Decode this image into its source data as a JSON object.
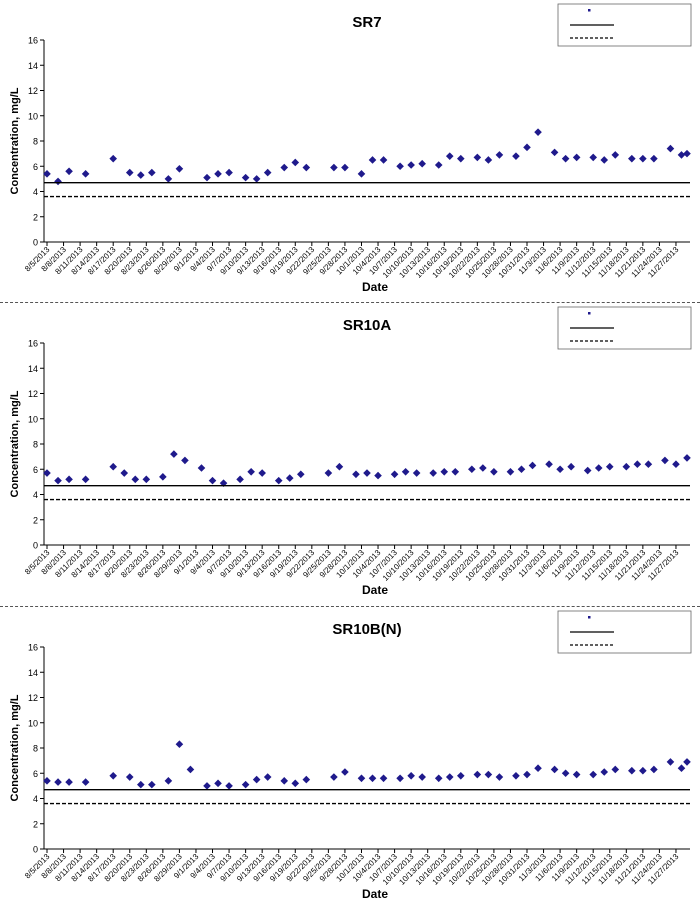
{
  "chart_data": [
    {
      "type": "scatter",
      "title": "SR7",
      "xlabel": "Date",
      "ylabel": "Concentration, mg/L",
      "ylim": [
        0,
        16
      ],
      "yticks": [
        0,
        2,
        4,
        6,
        8,
        10,
        12,
        14,
        16
      ],
      "xlim": [
        "8/5/2013",
        "11/29/2013"
      ],
      "xticks": [
        "8/5/2013",
        "8/8/2013",
        "8/11/2013",
        "8/14/2013",
        "8/17/2013",
        "8/20/2013",
        "8/23/2013",
        "8/26/2013",
        "8/29/2013",
        "9/1/2013",
        "9/4/2013",
        "9/7/2013",
        "9/10/2013",
        "9/13/2013",
        "9/16/2013",
        "9/19/2013",
        "9/22/2013",
        "9/25/2013",
        "9/28/2013",
        "10/1/2013",
        "10/4/2013",
        "10/7/2013",
        "10/10/2013",
        "10/13/2013",
        "10/16/2013",
        "10/19/2013",
        "10/22/2013",
        "10/25/2013",
        "10/28/2013",
        "10/31/2013",
        "11/3/2013",
        "11/6/2013",
        "11/9/2013",
        "11/12/2013",
        "11/15/2013",
        "11/18/2013",
        "11/21/2013",
        "11/24/2013",
        "11/27/2013"
      ],
      "legend_position": "top-right",
      "grid": false,
      "series": [
        {
          "kind": "points",
          "color": "#1f1a8c",
          "x": [
            "8/5/2013",
            "8/7/2013",
            "8/9/2013",
            "8/12/2013",
            "8/17/2013",
            "8/20/2013",
            "8/22/2013",
            "8/24/2013",
            "8/27/2013",
            "8/29/2013",
            "9/3/2013",
            "9/5/2013",
            "9/7/2013",
            "9/10/2013",
            "9/12/2013",
            "9/14/2013",
            "9/17/2013",
            "9/19/2013",
            "9/21/2013",
            "9/26/2013",
            "9/28/2013",
            "10/1/2013",
            "10/3/2013",
            "10/5/2013",
            "10/8/2013",
            "10/10/2013",
            "10/12/2013",
            "10/15/2013",
            "10/17/2013",
            "10/19/2013",
            "10/22/2013",
            "10/24/2013",
            "10/26/2013",
            "10/29/2013",
            "10/31/2013",
            "11/2/2013",
            "11/5/2013",
            "11/7/2013",
            "11/9/2013",
            "11/12/2013",
            "11/14/2013",
            "11/16/2013",
            "11/19/2013",
            "11/21/2013",
            "11/23/2013",
            "11/26/2013",
            "11/28/2013",
            "11/29/2013"
          ],
          "y": [
            5.4,
            4.8,
            5.6,
            5.4,
            6.6,
            5.5,
            5.3,
            5.5,
            5.0,
            5.8,
            5.1,
            5.4,
            5.5,
            5.1,
            5.0,
            5.5,
            5.9,
            6.3,
            5.9,
            5.9,
            5.9,
            5.4,
            6.5,
            6.5,
            6.0,
            6.1,
            6.2,
            6.1,
            6.8,
            6.6,
            6.7,
            6.5,
            6.9,
            6.8,
            7.5,
            8.7,
            7.1,
            6.6,
            6.7,
            6.7,
            6.5,
            6.9,
            6.6,
            6.6,
            6.6,
            7.4,
            6.9,
            7.0
          ]
        },
        {
          "kind": "hline",
          "style": "solid",
          "color": "#000000",
          "y": 4.7
        },
        {
          "kind": "hline",
          "style": "dashed",
          "color": "#000000",
          "y": 3.6
        }
      ]
    },
    {
      "type": "scatter",
      "title": "SR10A",
      "xlabel": "Date",
      "ylabel": "Concentration, mg/L",
      "ylim": [
        0,
        16
      ],
      "yticks": [
        0,
        2,
        4,
        6,
        8,
        10,
        12,
        14,
        16
      ],
      "xlim": [
        "8/5/2013",
        "11/29/2013"
      ],
      "xticks": [
        "8/5/2013",
        "8/8/2013",
        "8/11/2013",
        "8/14/2013",
        "8/17/2013",
        "8/20/2013",
        "8/23/2013",
        "8/26/2013",
        "8/29/2013",
        "9/1/2013",
        "9/4/2013",
        "9/7/2013",
        "9/10/2013",
        "9/13/2013",
        "9/16/2013",
        "9/19/2013",
        "9/22/2013",
        "9/25/2013",
        "9/28/2013",
        "10/1/2013",
        "10/4/2013",
        "10/7/2013",
        "10/10/2013",
        "10/13/2013",
        "10/16/2013",
        "10/19/2013",
        "10/22/2013",
        "10/25/2013",
        "10/28/2013",
        "10/31/2013",
        "11/3/2013",
        "11/6/2013",
        "11/9/2013",
        "11/12/2013",
        "11/15/2013",
        "11/18/2013",
        "11/21/2013",
        "11/24/2013",
        "11/27/2013"
      ],
      "legend_position": "top-right",
      "grid": false,
      "series": [
        {
          "kind": "points",
          "color": "#1f1a8c",
          "x": [
            "8/5/2013",
            "8/7/2013",
            "8/9/2013",
            "8/12/2013",
            "8/17/2013",
            "8/19/2013",
            "8/21/2013",
            "8/23/2013",
            "8/26/2013",
            "8/28/2013",
            "8/30/2013",
            "9/2/2013",
            "9/4/2013",
            "9/6/2013",
            "9/9/2013",
            "9/11/2013",
            "9/13/2013",
            "9/16/2013",
            "9/18/2013",
            "9/20/2013",
            "9/25/2013",
            "9/27/2013",
            "9/30/2013",
            "10/2/2013",
            "10/4/2013",
            "10/7/2013",
            "10/9/2013",
            "10/11/2013",
            "10/14/2013",
            "10/16/2013",
            "10/18/2013",
            "10/21/2013",
            "10/23/2013",
            "10/25/2013",
            "10/28/2013",
            "10/30/2013",
            "11/1/2013",
            "11/4/2013",
            "11/6/2013",
            "11/8/2013",
            "11/11/2013",
            "11/13/2013",
            "11/15/2013",
            "11/18/2013",
            "11/20/2013",
            "11/22/2013",
            "11/25/2013",
            "11/27/2013",
            "11/29/2013"
          ],
          "y": [
            5.7,
            5.1,
            5.2,
            5.2,
            6.2,
            5.7,
            5.2,
            5.2,
            5.4,
            7.2,
            6.7,
            6.1,
            5.1,
            4.9,
            5.2,
            5.8,
            5.7,
            5.1,
            5.3,
            5.6,
            5.7,
            6.2,
            5.6,
            5.7,
            5.5,
            5.6,
            5.8,
            5.7,
            5.7,
            5.8,
            5.8,
            6.0,
            6.1,
            5.8,
            5.8,
            6.0,
            6.3,
            6.4,
            6.0,
            6.2,
            5.9,
            6.1,
            6.2,
            6.2,
            6.4,
            6.4,
            6.7,
            6.4,
            6.9
          ]
        },
        {
          "kind": "hline",
          "style": "solid",
          "color": "#000000",
          "y": 4.7
        },
        {
          "kind": "hline",
          "style": "dashed",
          "color": "#000000",
          "y": 3.6
        }
      ]
    },
    {
      "type": "scatter",
      "title": "SR10B(N)",
      "xlabel": "Date",
      "ylabel": "Concentration, mg/L",
      "ylim": [
        0,
        16
      ],
      "yticks": [
        0,
        2,
        4,
        6,
        8,
        10,
        12,
        14,
        16
      ],
      "xlim": [
        "8/5/2013",
        "11/29/2013"
      ],
      "xticks": [
        "8/5/2013",
        "8/8/2013",
        "8/11/2013",
        "8/14/2013",
        "8/17/2013",
        "8/20/2013",
        "8/23/2013",
        "8/26/2013",
        "8/29/2013",
        "9/1/2013",
        "9/4/2013",
        "9/7/2013",
        "9/10/2013",
        "9/13/2013",
        "9/16/2013",
        "9/19/2013",
        "9/22/2013",
        "9/25/2013",
        "9/28/2013",
        "10/1/2013",
        "10/4/2013",
        "10/7/2013",
        "10/10/2013",
        "10/13/2013",
        "10/16/2013",
        "10/19/2013",
        "10/22/2013",
        "10/25/2013",
        "10/28/2013",
        "10/31/2013",
        "11/3/2013",
        "11/6/2013",
        "11/9/2013",
        "11/12/2013",
        "11/15/2013",
        "11/18/2013",
        "11/21/2013",
        "11/24/2013",
        "11/27/2013"
      ],
      "legend_position": "top-right",
      "grid": false,
      "series": [
        {
          "kind": "points",
          "color": "#1f1a8c",
          "x": [
            "8/5/2013",
            "8/7/2013",
            "8/9/2013",
            "8/12/2013",
            "8/17/2013",
            "8/20/2013",
            "8/22/2013",
            "8/24/2013",
            "8/27/2013",
            "8/29/2013",
            "8/31/2013",
            "9/3/2013",
            "9/5/2013",
            "9/7/2013",
            "9/10/2013",
            "9/12/2013",
            "9/14/2013",
            "9/17/2013",
            "9/19/2013",
            "9/21/2013",
            "9/26/2013",
            "9/28/2013",
            "10/1/2013",
            "10/3/2013",
            "10/5/2013",
            "10/8/2013",
            "10/10/2013",
            "10/12/2013",
            "10/15/2013",
            "10/17/2013",
            "10/19/2013",
            "10/22/2013",
            "10/24/2013",
            "10/26/2013",
            "10/29/2013",
            "10/31/2013",
            "11/2/2013",
            "11/5/2013",
            "11/7/2013",
            "11/9/2013",
            "11/12/2013",
            "11/14/2013",
            "11/16/2013",
            "11/19/2013",
            "11/21/2013",
            "11/23/2013",
            "11/26/2013",
            "11/28/2013",
            "11/29/2013"
          ],
          "y": [
            5.4,
            5.3,
            5.3,
            5.3,
            5.8,
            5.7,
            5.1,
            5.1,
            5.4,
            8.3,
            6.3,
            5.0,
            5.2,
            5.0,
            5.1,
            5.5,
            5.7,
            5.4,
            5.2,
            5.5,
            5.7,
            6.1,
            5.6,
            5.6,
            5.6,
            5.6,
            5.8,
            5.7,
            5.6,
            5.7,
            5.8,
            5.9,
            5.9,
            5.7,
            5.8,
            5.9,
            6.4,
            6.3,
            6.0,
            5.9,
            5.9,
            6.1,
            6.3,
            6.2,
            6.2,
            6.3,
            6.9,
            6.4,
            6.9
          ]
        },
        {
          "kind": "hline",
          "style": "solid",
          "color": "#000000",
          "y": 4.7
        },
        {
          "kind": "hline",
          "style": "dashed",
          "color": "#000000",
          "y": 3.6
        }
      ]
    }
  ]
}
